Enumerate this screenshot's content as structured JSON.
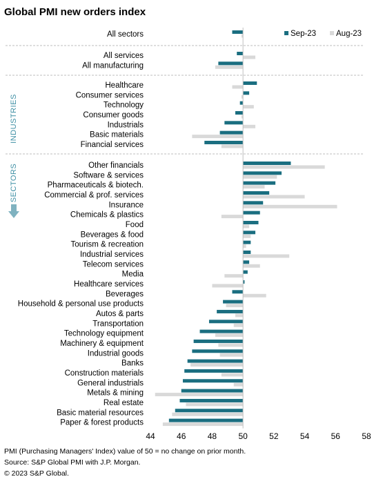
{
  "chart_data": {
    "type": "bar",
    "orientation": "horizontal",
    "title": "Global PMI new orders index",
    "xlim": [
      44,
      58
    ],
    "xticks": [
      44,
      46,
      48,
      50,
      52,
      54,
      56,
      58
    ],
    "baseline": 50,
    "legend": {
      "position": "top-right"
    },
    "series": [
      {
        "name": "Sep-23",
        "color": "#1a6e80"
      },
      {
        "name": "Aug-23",
        "color": "#d9d9d9"
      }
    ],
    "groups": [
      {
        "label": "",
        "items": [
          {
            "label": "All sectors",
            "sep": 49.3,
            "aug": 49.9
          }
        ]
      },
      {
        "label": "",
        "items": [
          {
            "label": "All services",
            "sep": 49.6,
            "aug": 50.8
          },
          {
            "label": "All manufacturing",
            "sep": 48.4,
            "aug": 48.2
          }
        ]
      },
      {
        "label": "INDUSTRIES",
        "items": [
          {
            "label": "Healthcare",
            "sep": 50.9,
            "aug": 49.3
          },
          {
            "label": "Consumer services",
            "sep": 50.4,
            "aug": 49.9
          },
          {
            "label": "Technology",
            "sep": 49.8,
            "aug": 50.7
          },
          {
            "label": "Consumer goods",
            "sep": 49.5,
            "aug": 49.9
          },
          {
            "label": "Industrials",
            "sep": 48.8,
            "aug": 50.8
          },
          {
            "label": "Basic materials",
            "sep": 48.5,
            "aug": 46.7
          },
          {
            "label": "Financial services",
            "sep": 47.5,
            "aug": 48.6
          }
        ]
      },
      {
        "label": "SECTORS",
        "items": [
          {
            "label": "Other financials",
            "sep": 53.1,
            "aug": 55.3
          },
          {
            "label": "Software & services",
            "sep": 52.5,
            "aug": 52.2
          },
          {
            "label": "Pharmaceuticals & biotech.",
            "sep": 52.1,
            "aug": 51.4
          },
          {
            "label": "Commercial & prof. services",
            "sep": 51.7,
            "aug": 54.0
          },
          {
            "label": "Insurance",
            "sep": 51.3,
            "aug": 56.1
          },
          {
            "label": "Chemicals & plastics",
            "sep": 51.1,
            "aug": 48.6
          },
          {
            "label": "Food",
            "sep": 51.0,
            "aug": 50.4
          },
          {
            "label": "Beverages & food",
            "sep": 50.8,
            "aug": 50.5
          },
          {
            "label": "Tourism & recreation",
            "sep": 50.5,
            "aug": 50.2
          },
          {
            "label": "Industrial services",
            "sep": 50.5,
            "aug": 53.0
          },
          {
            "label": "Telecom services",
            "sep": 50.4,
            "aug": 51.1
          },
          {
            "label": "Media",
            "sep": 50.3,
            "aug": 48.8
          },
          {
            "label": "Healthcare services",
            "sep": 50.1,
            "aug": 48.0
          },
          {
            "label": "Beverages",
            "sep": 49.3,
            "aug": 51.5
          },
          {
            "label": "Household & personal use products",
            "sep": 48.7,
            "aug": 48.9
          },
          {
            "label": "Autos & parts",
            "sep": 48.3,
            "aug": 49.5
          },
          {
            "label": "Transportation",
            "sep": 47.8,
            "aug": 49.4
          },
          {
            "label": "Technology equipment",
            "sep": 47.2,
            "aug": 48.2
          },
          {
            "label": "Machinery & equipment",
            "sep": 46.8,
            "aug": 48.4
          },
          {
            "label": "Industrial goods",
            "sep": 46.7,
            "aug": 48.5
          },
          {
            "label": "Banks",
            "sep": 46.4,
            "aug": 46.6
          },
          {
            "label": "Construction materials",
            "sep": 46.2,
            "aug": 48.6
          },
          {
            "label": "General industrials",
            "sep": 46.1,
            "aug": 49.4
          },
          {
            "label": "Metals & mining",
            "sep": 46.0,
            "aug": 44.3
          },
          {
            "label": "Real estate",
            "sep": 45.9,
            "aug": 46.3
          },
          {
            "label": "Basic material resources",
            "sep": 45.6,
            "aug": 45.4
          },
          {
            "label": "Paper & forest products",
            "sep": 45.2,
            "aug": 44.8
          }
        ]
      }
    ]
  },
  "footnotes": {
    "line1": "PMI (Purchasing Managers' Index) value of 50 = no change on prior month.",
    "line2": "Source: S&P Global PMI with J.P. Morgan.",
    "line3": "© 2023 S&P Global."
  }
}
